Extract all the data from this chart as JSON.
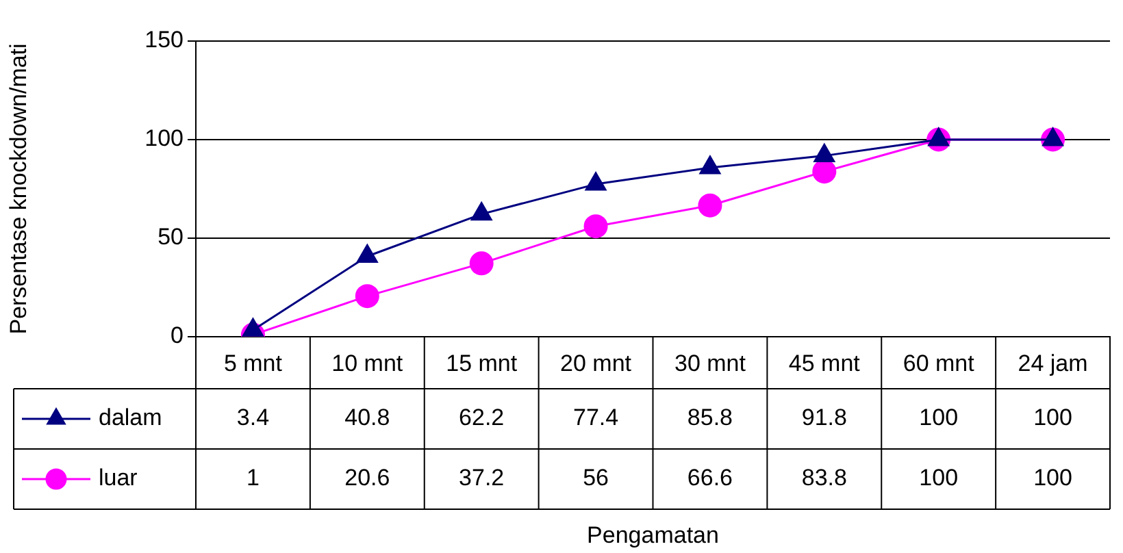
{
  "chart_data": {
    "type": "line",
    "annotations": [
      "Pengamatan"
    ],
    "ylabel": "Persentase knockdown/mati",
    "categories": [
      "5 mnt",
      "10 mnt",
      "15 mnt",
      "20 mnt",
      "30 mnt",
      "45 mnt",
      "60 mnt",
      "24 jam"
    ],
    "series": [
      {
        "name": "dalam",
        "color": "#000080",
        "marker": "triangle",
        "values": [
          3.4,
          40.8,
          62.2,
          77.4,
          85.8,
          91.8,
          100,
          100
        ]
      },
      {
        "name": "luar",
        "color": "#ff00ff",
        "marker": "circle",
        "values": [
          1,
          20.6,
          37.2,
          56,
          66.6,
          83.8,
          100,
          100
        ]
      }
    ],
    "ylim": [
      0,
      150
    ],
    "yticks": [
      0,
      50,
      100,
      150
    ],
    "grid": "y",
    "legend": "bottom",
    "data_labels": true,
    "line_style": "solid"
  }
}
